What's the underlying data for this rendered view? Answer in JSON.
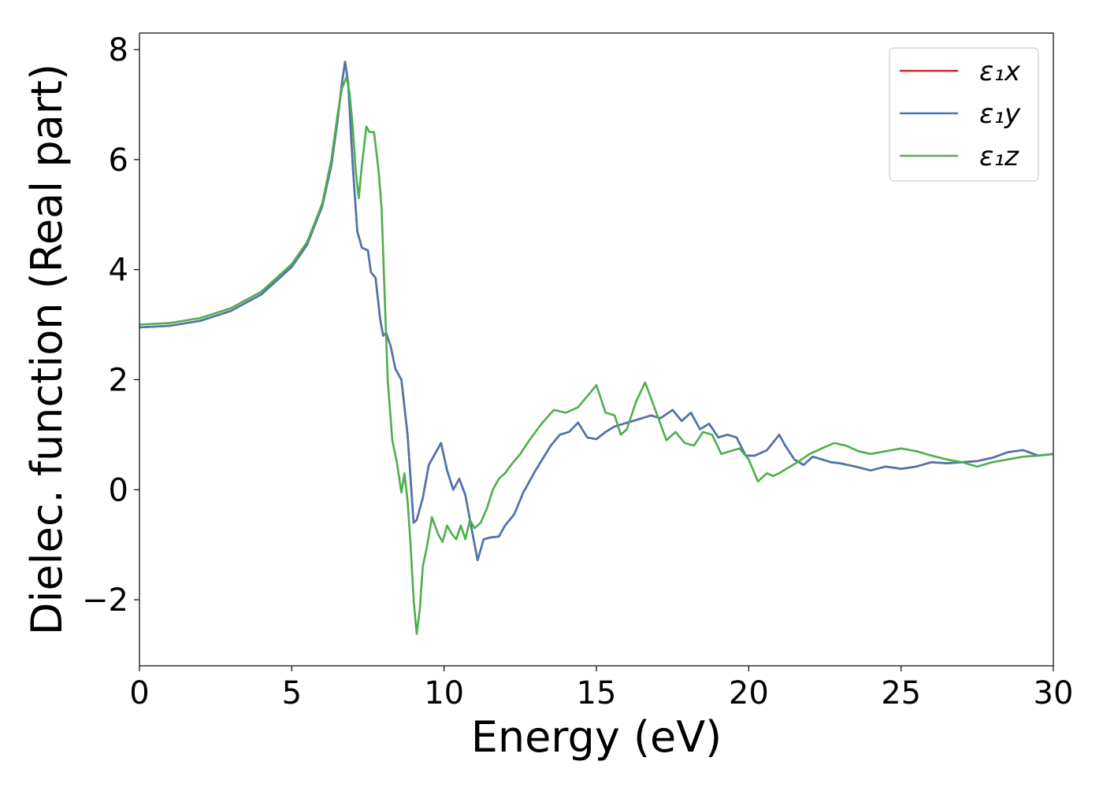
{
  "chart_data": {
    "type": "line",
    "title": "",
    "xlabel": "Energy (eV)",
    "ylabel": "Dielec. function (Real part)",
    "xlim": [
      0,
      30
    ],
    "ylim": [
      -3.2,
      8.3
    ],
    "xticks": [
      0,
      5,
      10,
      15,
      20,
      25,
      30
    ],
    "yticks": [
      -2,
      0,
      2,
      4,
      6,
      8
    ],
    "xtick_labels": [
      "0",
      "5",
      "10",
      "15",
      "20",
      "25",
      "30"
    ],
    "ytick_labels": [
      "−2",
      "0",
      "2",
      "4",
      "6",
      "8"
    ],
    "grid": false,
    "legend_position": "top-right",
    "series": [
      {
        "name": "ε₁x",
        "color": "#e41a1c",
        "x": [
          0,
          1,
          2,
          3,
          4,
          5,
          5.5,
          6,
          6.3,
          6.5,
          6.65,
          6.75,
          6.85,
          7.0,
          7.15,
          7.3,
          7.5,
          7.6,
          7.75,
          7.9,
          8.0,
          8.1,
          8.25,
          8.4,
          8.6,
          8.8,
          9.0,
          9.1,
          9.3,
          9.5,
          9.7,
          9.9,
          10.1,
          10.3,
          10.5,
          10.7,
          10.9,
          11.1,
          11.3,
          11.5,
          11.8,
          12.0,
          12.3,
          12.6,
          13.0,
          13.5,
          13.8,
          14.1,
          14.4,
          14.7,
          15.0,
          15.3,
          15.6,
          15.9,
          16.2,
          16.5,
          16.8,
          17.1,
          17.5,
          17.8,
          18.1,
          18.4,
          18.7,
          19.0,
          19.3,
          19.6,
          19.9,
          20.2,
          20.6,
          21.0,
          21.2,
          21.5,
          21.8,
          22.1,
          22.4,
          22.7,
          23.0,
          23.5,
          24.0,
          24.5,
          25.0,
          25.5,
          26.0,
          26.5,
          27.0,
          27.5,
          28.0,
          28.5,
          29.0,
          29.5,
          30.0
        ],
        "y": [
          2.95,
          2.98,
          3.07,
          3.25,
          3.55,
          4.05,
          4.45,
          5.15,
          5.9,
          6.7,
          7.4,
          7.78,
          7.4,
          5.9,
          4.7,
          4.4,
          4.35,
          3.95,
          3.85,
          3.1,
          2.8,
          2.85,
          2.6,
          2.2,
          2.0,
          1.0,
          -0.6,
          -0.55,
          -0.15,
          0.45,
          0.65,
          0.85,
          0.35,
          0.0,
          0.2,
          -0.1,
          -0.7,
          -1.28,
          -0.9,
          -0.87,
          -0.85,
          -0.65,
          -0.45,
          -0.05,
          0.35,
          0.8,
          1.0,
          1.05,
          1.22,
          0.95,
          0.92,
          1.05,
          1.15,
          1.2,
          1.25,
          1.3,
          1.35,
          1.3,
          1.45,
          1.25,
          1.4,
          1.1,
          1.2,
          0.95,
          1.0,
          0.95,
          0.62,
          0.62,
          0.72,
          1.0,
          0.8,
          0.55,
          0.45,
          0.6,
          0.55,
          0.5,
          0.48,
          0.42,
          0.35,
          0.42,
          0.38,
          0.42,
          0.5,
          0.48,
          0.5,
          0.52,
          0.58,
          0.68,
          0.72,
          0.62,
          0.65
        ]
      },
      {
        "name": "ε₁y",
        "color": "#4a76b0",
        "x": [
          0,
          1,
          2,
          3,
          4,
          5,
          5.5,
          6,
          6.3,
          6.5,
          6.65,
          6.75,
          6.85,
          7.0,
          7.15,
          7.3,
          7.5,
          7.6,
          7.75,
          7.9,
          8.0,
          8.1,
          8.25,
          8.4,
          8.6,
          8.8,
          9.0,
          9.1,
          9.3,
          9.5,
          9.7,
          9.9,
          10.1,
          10.3,
          10.5,
          10.7,
          10.9,
          11.1,
          11.3,
          11.5,
          11.8,
          12.0,
          12.3,
          12.6,
          13.0,
          13.5,
          13.8,
          14.1,
          14.4,
          14.7,
          15.0,
          15.3,
          15.6,
          15.9,
          16.2,
          16.5,
          16.8,
          17.1,
          17.5,
          17.8,
          18.1,
          18.4,
          18.7,
          19.0,
          19.3,
          19.6,
          19.9,
          20.2,
          20.6,
          21.0,
          21.2,
          21.5,
          21.8,
          22.1,
          22.4,
          22.7,
          23.0,
          23.5,
          24.0,
          24.5,
          25.0,
          25.5,
          26.0,
          26.5,
          27.0,
          27.5,
          28.0,
          28.5,
          29.0,
          29.5,
          30.0
        ],
        "y": [
          2.95,
          2.98,
          3.07,
          3.25,
          3.55,
          4.05,
          4.45,
          5.15,
          5.9,
          6.7,
          7.4,
          7.78,
          7.4,
          5.9,
          4.7,
          4.4,
          4.35,
          3.95,
          3.85,
          3.1,
          2.8,
          2.85,
          2.6,
          2.2,
          2.0,
          1.0,
          -0.6,
          -0.55,
          -0.15,
          0.45,
          0.65,
          0.85,
          0.35,
          0.0,
          0.2,
          -0.1,
          -0.7,
          -1.28,
          -0.9,
          -0.87,
          -0.85,
          -0.65,
          -0.45,
          -0.05,
          0.35,
          0.8,
          1.0,
          1.05,
          1.22,
          0.95,
          0.92,
          1.05,
          1.15,
          1.2,
          1.25,
          1.3,
          1.35,
          1.3,
          1.45,
          1.25,
          1.4,
          1.1,
          1.2,
          0.95,
          1.0,
          0.95,
          0.62,
          0.62,
          0.72,
          1.0,
          0.8,
          0.55,
          0.45,
          0.6,
          0.55,
          0.5,
          0.48,
          0.42,
          0.35,
          0.42,
          0.38,
          0.42,
          0.5,
          0.48,
          0.5,
          0.52,
          0.58,
          0.68,
          0.72,
          0.62,
          0.65
        ]
      },
      {
        "name": "ε₁z",
        "color": "#4daf4a",
        "x": [
          0,
          1,
          2,
          3,
          4,
          5,
          5.5,
          6,
          6.3,
          6.5,
          6.65,
          6.8,
          6.9,
          7.0,
          7.1,
          7.2,
          7.3,
          7.45,
          7.55,
          7.7,
          7.85,
          7.95,
          8.05,
          8.15,
          8.3,
          8.45,
          8.6,
          8.7,
          8.8,
          8.9,
          9.0,
          9.1,
          9.2,
          9.3,
          9.45,
          9.6,
          9.8,
          9.95,
          10.1,
          10.25,
          10.4,
          10.55,
          10.7,
          10.85,
          11.0,
          11.2,
          11.4,
          11.6,
          11.8,
          12.0,
          12.2,
          12.5,
          12.8,
          13.2,
          13.6,
          14.0,
          14.4,
          14.7,
          15.0,
          15.3,
          15.6,
          15.8,
          16.0,
          16.3,
          16.6,
          16.9,
          17.1,
          17.3,
          17.6,
          17.9,
          18.2,
          18.5,
          18.8,
          19.1,
          19.4,
          19.7,
          20.0,
          20.3,
          20.6,
          20.8,
          21.0,
          21.3,
          21.6,
          22.0,
          22.4,
          22.8,
          23.2,
          23.6,
          24.0,
          24.5,
          25.0,
          25.5,
          26.0,
          26.5,
          27.0,
          27.5,
          28.0,
          28.5,
          29.0,
          29.5,
          30.0
        ],
        "y": [
          3.0,
          3.03,
          3.12,
          3.3,
          3.6,
          4.1,
          4.5,
          5.2,
          6.0,
          6.8,
          7.3,
          7.5,
          7.2,
          6.6,
          5.8,
          5.3,
          5.9,
          6.6,
          6.5,
          6.5,
          5.8,
          5.1,
          3.5,
          2.0,
          0.9,
          0.5,
          -0.05,
          0.3,
          -0.2,
          -1.0,
          -2.0,
          -2.62,
          -2.2,
          -1.4,
          -1.0,
          -0.5,
          -0.8,
          -0.95,
          -0.65,
          -0.8,
          -0.9,
          -0.65,
          -0.9,
          -0.55,
          -0.7,
          -0.6,
          -0.35,
          0.0,
          0.2,
          0.3,
          0.45,
          0.65,
          0.9,
          1.2,
          1.45,
          1.4,
          1.5,
          1.7,
          1.9,
          1.4,
          1.35,
          1.0,
          1.1,
          1.6,
          1.95,
          1.5,
          1.2,
          0.9,
          1.05,
          0.85,
          0.8,
          1.05,
          1.0,
          0.65,
          0.7,
          0.75,
          0.55,
          0.15,
          0.3,
          0.25,
          0.3,
          0.4,
          0.5,
          0.65,
          0.75,
          0.85,
          0.8,
          0.7,
          0.65,
          0.7,
          0.75,
          0.7,
          0.62,
          0.55,
          0.5,
          0.42,
          0.5,
          0.55,
          0.6,
          0.62,
          0.65
        ]
      }
    ]
  }
}
